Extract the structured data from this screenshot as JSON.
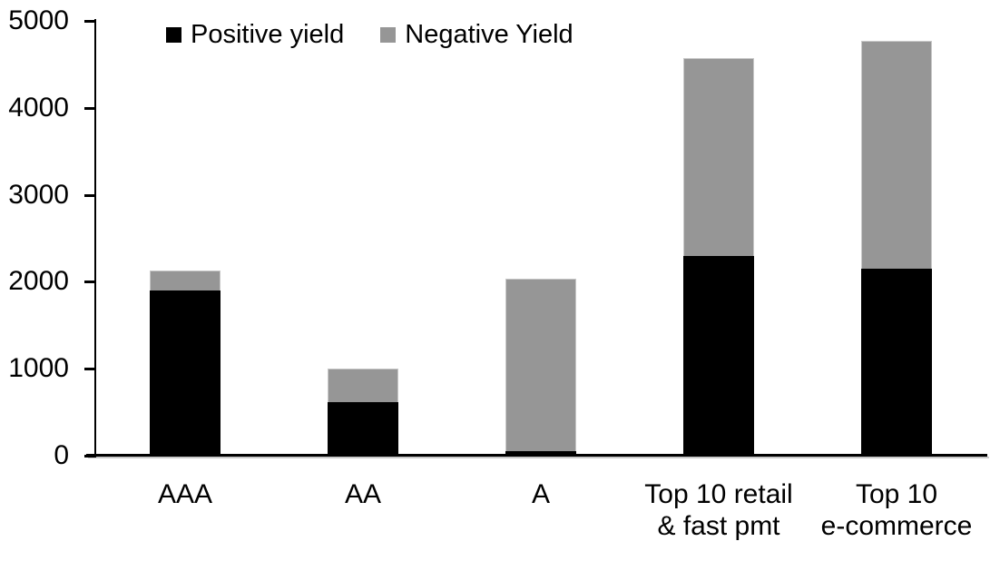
{
  "chart_data": {
    "type": "bar",
    "stacked": true,
    "title": "",
    "xlabel": "",
    "ylabel": "",
    "grid": false,
    "legend_position": "top-left-inside",
    "ylim": [
      0,
      5000
    ],
    "yticks": [
      0,
      1000,
      2000,
      3000,
      4000,
      5000
    ],
    "categories": [
      "AAA",
      "AA",
      "A",
      "Top 10 retail & fast pmt",
      "Top 10 e-commerce"
    ],
    "category_lines": [
      [
        "AAA"
      ],
      [
        "AA"
      ],
      [
        "A"
      ],
      [
        "Top 10 retail",
        "& fast pmt"
      ],
      [
        "Top 10",
        "e-commerce"
      ]
    ],
    "series": [
      {
        "name": "Positive yield",
        "color": "#000000",
        "values": [
          1900,
          620,
          50,
          2300,
          2150
        ]
      },
      {
        "name": "Negative Yield",
        "color": "#969696",
        "values": [
          230,
          385,
          1985,
          2270,
          2620
        ]
      }
    ],
    "totals": [
      2130,
      1005,
      2035,
      4570,
      4770
    ]
  },
  "colors": {
    "positive": "#000000",
    "negative": "#969696",
    "axis": "#000000",
    "background": "#ffffff"
  }
}
